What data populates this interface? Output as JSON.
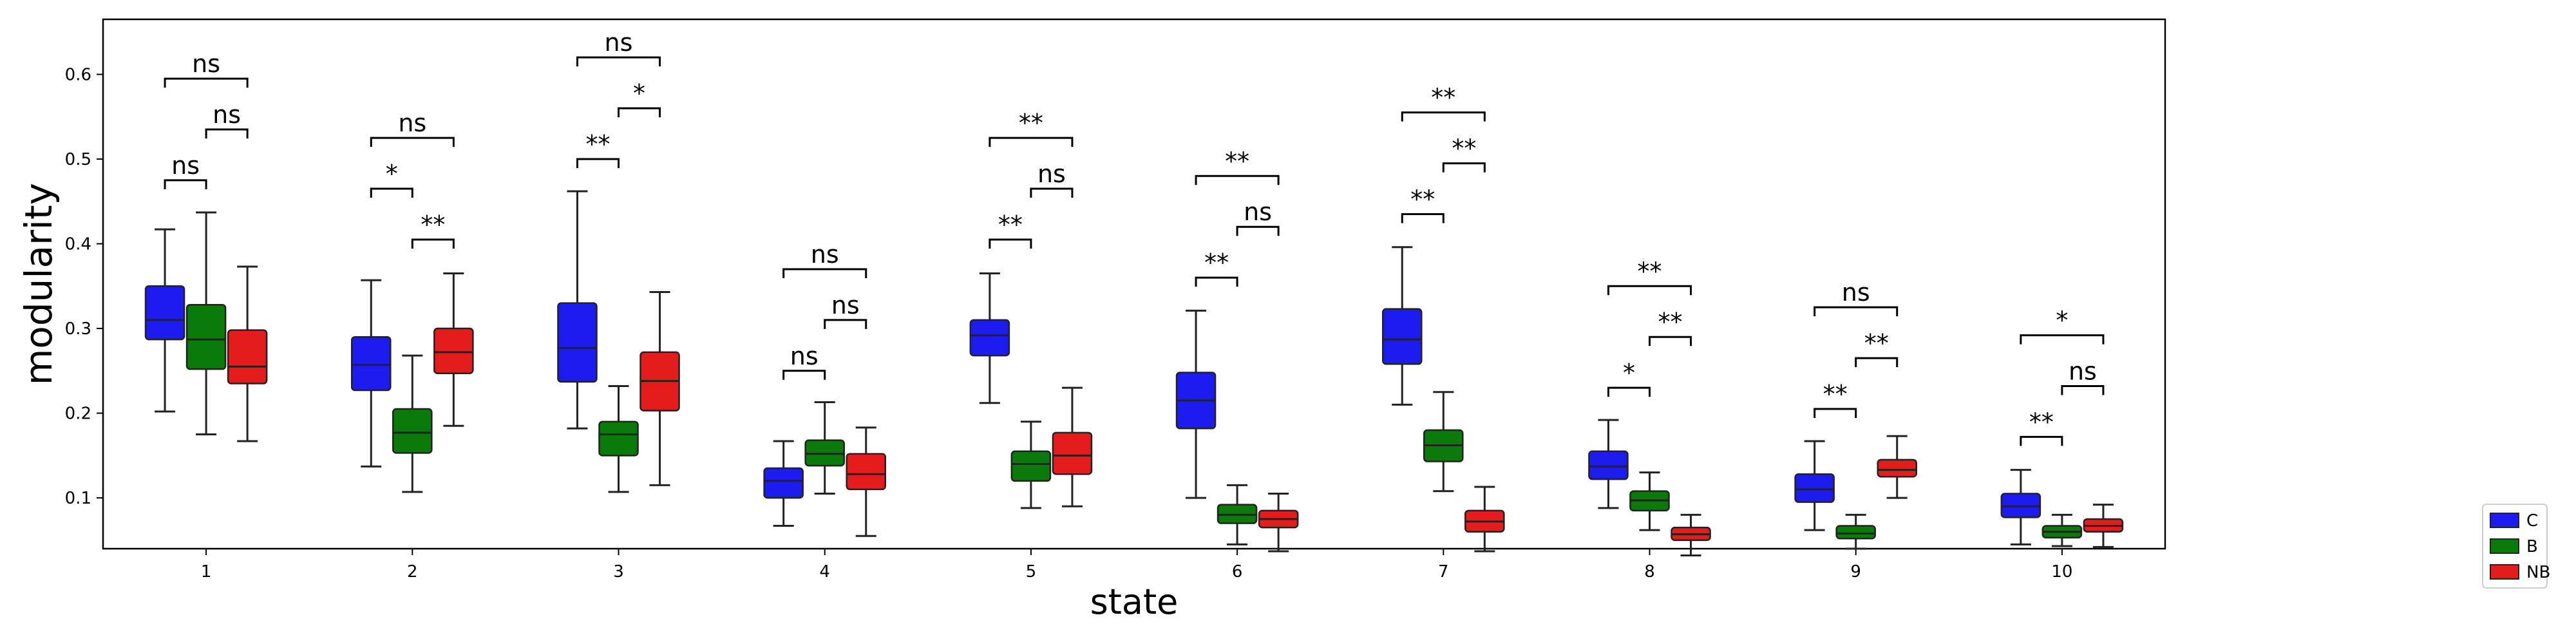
{
  "chart_data": {
    "type": "box",
    "xlabel": "state",
    "ylabel": "modularity",
    "categories": [
      "1",
      "2",
      "3",
      "4",
      "5",
      "6",
      "7",
      "8",
      "9",
      "10"
    ],
    "ylim": [
      0.04,
      0.665
    ],
    "yticks": [
      "0.1",
      "0.2",
      "0.3",
      "0.4",
      "0.5",
      "0.6"
    ],
    "ytick_values": [
      0.1,
      0.2,
      0.3,
      0.4,
      0.5,
      0.6
    ],
    "legend": {
      "placement": "right",
      "entries": [
        "C",
        "B",
        "NB"
      ]
    },
    "colors": {
      "C": "#1c1cf0",
      "B": "#0a7a0a",
      "NB": "#e61c1c",
      "edge": "#222222"
    },
    "series": [
      {
        "name": "C",
        "boxes": [
          {
            "whislo": 0.202,
            "q1": 0.287,
            "med": 0.31,
            "q3": 0.35,
            "whishi": 0.417
          },
          {
            "whislo": 0.137,
            "q1": 0.227,
            "med": 0.257,
            "q3": 0.29,
            "whishi": 0.357
          },
          {
            "whislo": 0.182,
            "q1": 0.237,
            "med": 0.277,
            "q3": 0.33,
            "whishi": 0.462
          },
          {
            "whislo": 0.067,
            "q1": 0.1,
            "med": 0.12,
            "q3": 0.135,
            "whishi": 0.167
          },
          {
            "whislo": 0.212,
            "q1": 0.268,
            "med": 0.292,
            "q3": 0.31,
            "whishi": 0.365
          },
          {
            "whislo": 0.1,
            "q1": 0.182,
            "med": 0.215,
            "q3": 0.248,
            "whishi": 0.321
          },
          {
            "whislo": 0.21,
            "q1": 0.258,
            "med": 0.287,
            "q3": 0.323,
            "whishi": 0.396
          },
          {
            "whislo": 0.088,
            "q1": 0.122,
            "med": 0.137,
            "q3": 0.155,
            "whishi": 0.192
          },
          {
            "whislo": 0.062,
            "q1": 0.095,
            "med": 0.11,
            "q3": 0.128,
            "whishi": 0.167
          },
          {
            "whislo": 0.045,
            "q1": 0.077,
            "med": 0.09,
            "q3": 0.105,
            "whishi": 0.133
          }
        ]
      },
      {
        "name": "B",
        "boxes": [
          {
            "whislo": 0.175,
            "q1": 0.252,
            "med": 0.287,
            "q3": 0.328,
            "whishi": 0.437
          },
          {
            "whislo": 0.107,
            "q1": 0.153,
            "med": 0.177,
            "q3": 0.205,
            "whishi": 0.268
          },
          {
            "whislo": 0.107,
            "q1": 0.15,
            "med": 0.175,
            "q3": 0.19,
            "whishi": 0.232
          },
          {
            "whislo": 0.105,
            "q1": 0.138,
            "med": 0.152,
            "q3": 0.168,
            "whishi": 0.213
          },
          {
            "whislo": 0.088,
            "q1": 0.12,
            "med": 0.14,
            "q3": 0.155,
            "whishi": 0.19
          },
          {
            "whislo": 0.045,
            "q1": 0.07,
            "med": 0.08,
            "q3": 0.092,
            "whishi": 0.115
          },
          {
            "whislo": 0.108,
            "q1": 0.143,
            "med": 0.162,
            "q3": 0.18,
            "whishi": 0.225
          },
          {
            "whislo": 0.062,
            "q1": 0.085,
            "med": 0.097,
            "q3": 0.108,
            "whishi": 0.13
          },
          {
            "whislo": 0.04,
            "q1": 0.052,
            "med": 0.058,
            "q3": 0.067,
            "whishi": 0.08
          },
          {
            "whislo": 0.043,
            "q1": 0.053,
            "med": 0.06,
            "q3": 0.067,
            "whishi": 0.08
          }
        ]
      },
      {
        "name": "NB",
        "boxes": [
          {
            "whislo": 0.167,
            "q1": 0.235,
            "med": 0.255,
            "q3": 0.298,
            "whishi": 0.373
          },
          {
            "whislo": 0.185,
            "q1": 0.247,
            "med": 0.272,
            "q3": 0.3,
            "whishi": 0.365
          },
          {
            "whislo": 0.115,
            "q1": 0.203,
            "med": 0.238,
            "q3": 0.272,
            "whishi": 0.343
          },
          {
            "whislo": 0.055,
            "q1": 0.11,
            "med": 0.128,
            "q3": 0.152,
            "whishi": 0.183
          },
          {
            "whislo": 0.09,
            "q1": 0.128,
            "med": 0.15,
            "q3": 0.177,
            "whishi": 0.23
          },
          {
            "whislo": 0.037,
            "q1": 0.065,
            "med": 0.075,
            "q3": 0.085,
            "whishi": 0.105
          },
          {
            "whislo": 0.037,
            "q1": 0.06,
            "med": 0.072,
            "q3": 0.085,
            "whishi": 0.113
          },
          {
            "whislo": 0.032,
            "q1": 0.05,
            "med": 0.057,
            "q3": 0.065,
            "whishi": 0.08
          },
          {
            "whislo": 0.1,
            "q1": 0.125,
            "med": 0.133,
            "q3": 0.145,
            "whishi": 0.173
          },
          {
            "whislo": 0.042,
            "q1": 0.06,
            "med": 0.067,
            "q3": 0.075,
            "whishi": 0.092
          }
        ]
      }
    ],
    "significance": [
      {
        "category": "1",
        "pairs": [
          {
            "between": [
              "C",
              "B"
            ],
            "label": "ns",
            "y": 0.475
          },
          {
            "between": [
              "B",
              "NB"
            ],
            "label": "ns",
            "y": 0.535
          },
          {
            "between": [
              "C",
              "NB"
            ],
            "label": "ns",
            "y": 0.595
          }
        ]
      },
      {
        "category": "2",
        "pairs": [
          {
            "between": [
              "C",
              "B"
            ],
            "label": "*",
            "y": 0.465
          },
          {
            "between": [
              "B",
              "NB"
            ],
            "label": "**",
            "y": 0.405
          },
          {
            "between": [
              "C",
              "NB"
            ],
            "label": "ns",
            "y": 0.525
          }
        ]
      },
      {
        "category": "3",
        "pairs": [
          {
            "between": [
              "C",
              "B"
            ],
            "label": "**",
            "y": 0.5
          },
          {
            "between": [
              "B",
              "NB"
            ],
            "label": "*",
            "y": 0.56
          },
          {
            "between": [
              "C",
              "NB"
            ],
            "label": "ns",
            "y": 0.62
          }
        ]
      },
      {
        "category": "4",
        "pairs": [
          {
            "between": [
              "C",
              "B"
            ],
            "label": "ns",
            "y": 0.25
          },
          {
            "between": [
              "B",
              "NB"
            ],
            "label": "ns",
            "y": 0.31
          },
          {
            "between": [
              "C",
              "NB"
            ],
            "label": "ns",
            "y": 0.37
          }
        ]
      },
      {
        "category": "5",
        "pairs": [
          {
            "between": [
              "C",
              "B"
            ],
            "label": "**",
            "y": 0.405
          },
          {
            "between": [
              "B",
              "NB"
            ],
            "label": "ns",
            "y": 0.465
          },
          {
            "between": [
              "C",
              "NB"
            ],
            "label": "**",
            "y": 0.525
          }
        ]
      },
      {
        "category": "6",
        "pairs": [
          {
            "between": [
              "C",
              "B"
            ],
            "label": "**",
            "y": 0.36
          },
          {
            "between": [
              "B",
              "NB"
            ],
            "label": "ns",
            "y": 0.42
          },
          {
            "between": [
              "C",
              "NB"
            ],
            "label": "**",
            "y": 0.48
          }
        ]
      },
      {
        "category": "7",
        "pairs": [
          {
            "between": [
              "C",
              "B"
            ],
            "label": "**",
            "y": 0.435
          },
          {
            "between": [
              "B",
              "NB"
            ],
            "label": "**",
            "y": 0.495
          },
          {
            "between": [
              "C",
              "NB"
            ],
            "label": "**",
            "y": 0.555
          }
        ]
      },
      {
        "category": "8",
        "pairs": [
          {
            "between": [
              "C",
              "B"
            ],
            "label": "*",
            "y": 0.23
          },
          {
            "between": [
              "B",
              "NB"
            ],
            "label": "**",
            "y": 0.29
          },
          {
            "between": [
              "C",
              "NB"
            ],
            "label": "**",
            "y": 0.35
          }
        ]
      },
      {
        "category": "9",
        "pairs": [
          {
            "between": [
              "C",
              "B"
            ],
            "label": "**",
            "y": 0.205
          },
          {
            "between": [
              "B",
              "NB"
            ],
            "label": "**",
            "y": 0.265
          },
          {
            "between": [
              "C",
              "NB"
            ],
            "label": "ns",
            "y": 0.325
          }
        ]
      },
      {
        "category": "10",
        "pairs": [
          {
            "between": [
              "C",
              "B"
            ],
            "label": "**",
            "y": 0.172
          },
          {
            "between": [
              "B",
              "NB"
            ],
            "label": "ns",
            "y": 0.232
          },
          {
            "between": [
              "C",
              "NB"
            ],
            "label": "*",
            "y": 0.292
          }
        ]
      }
    ]
  }
}
